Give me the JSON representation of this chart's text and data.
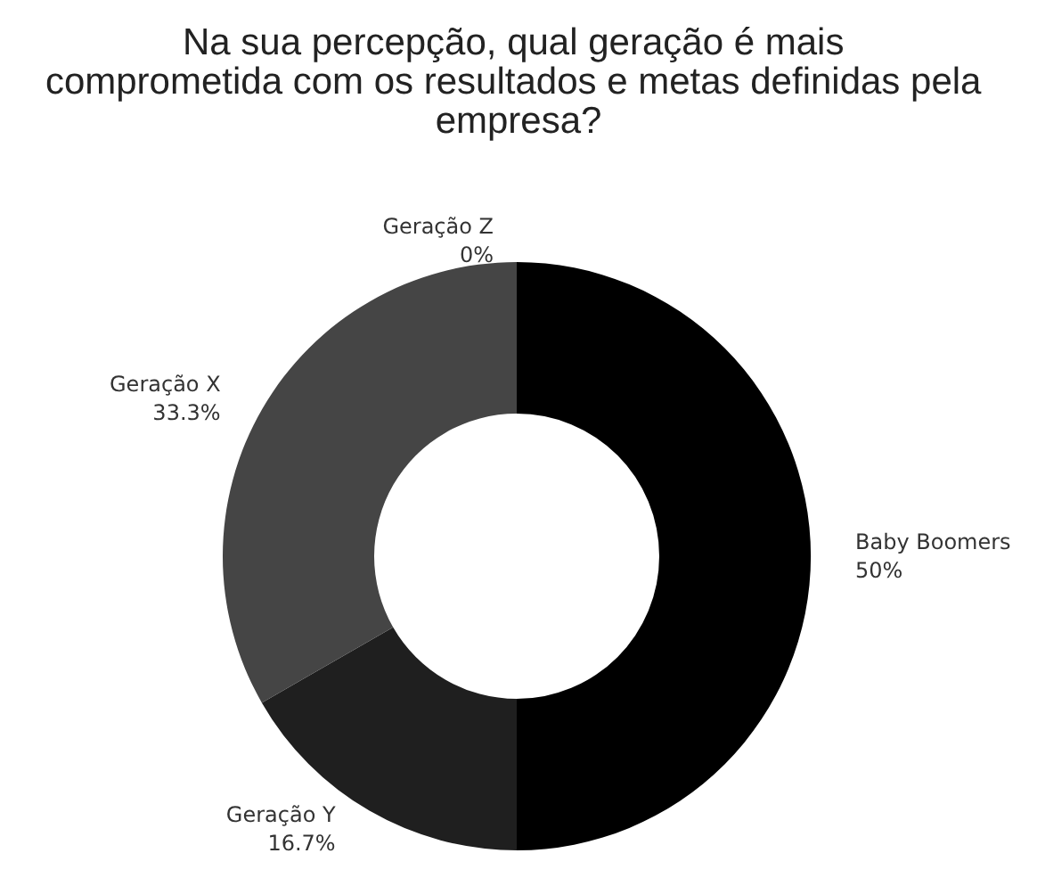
{
  "chart_data": {
    "type": "donut",
    "title": "Na sua percepção, qual geração é mais comprometida com os resultados e metas definidas pela empresa?",
    "categories": [
      "Baby Boomers",
      "Geração Y",
      "Geração X",
      "Geração Z"
    ],
    "values": [
      50,
      16.7,
      33.3,
      0
    ],
    "value_labels": [
      "50%",
      "16.7%",
      "33.3%",
      "0%"
    ],
    "colors": [
      "#000000",
      "#1f1f1f",
      "#454545",
      "#777777"
    ],
    "legend": false
  }
}
